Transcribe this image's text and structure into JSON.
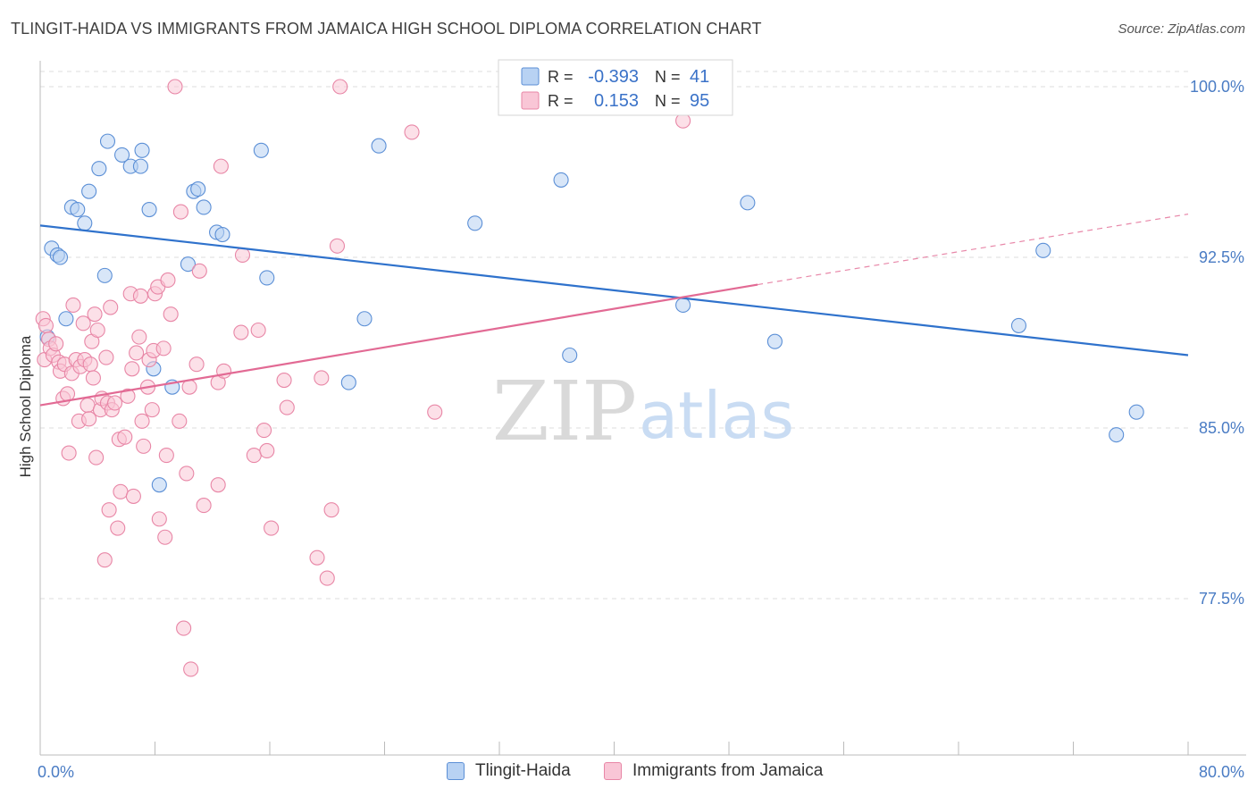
{
  "title": "TLINGIT-HAIDA VS IMMIGRANTS FROM JAMAICA HIGH SCHOOL DIPLOMA CORRELATION CHART",
  "source": "Source: ZipAtlas.com",
  "watermark": {
    "zip": "ZIP",
    "atlas": "atlas"
  },
  "colors": {
    "blue_fill": "#b8d2f3",
    "blue_stroke": "#5b8fd6",
    "blue_line": "#2f72cc",
    "pink_fill": "#f9c6d6",
    "pink_stroke": "#e886a6",
    "pink_line": "#e26a94",
    "tick_label": "#4a7cc4",
    "grid": "#dddddd"
  },
  "stats": {
    "r_label": "R =",
    "n_label": "N =",
    "rows": [
      {
        "r": "-0.393",
        "n": "41",
        "color": "blue"
      },
      {
        "r": "0.153",
        "n": "95",
        "color": "pink"
      }
    ]
  },
  "chart_data": {
    "type": "scatter",
    "title": "TLINGIT-HAIDA VS IMMIGRANTS FROM JAMAICA HIGH SCHOOL DIPLOMA CORRELATION CHART",
    "xlabel": "",
    "ylabel": "High School Diploma",
    "xlim": [
      0,
      80
    ],
    "ylim": [
      71,
      101
    ],
    "x_tick_labels": [
      "0.0%",
      "80.0%"
    ],
    "y_ticks": [
      77.5,
      85.0,
      92.5,
      100.0
    ],
    "y_tick_labels": [
      "77.5%",
      "85.0%",
      "92.5%",
      "100.0%"
    ],
    "grid": true,
    "legend_position": "bottom",
    "series": [
      {
        "name": "Tlingit-Haida",
        "color": "blue",
        "trend": {
          "x": [
            0,
            80
          ],
          "y": [
            93.9,
            88.2
          ]
        },
        "points": [
          [
            0.5,
            89.0
          ],
          [
            0.8,
            92.9
          ],
          [
            1.2,
            92.6
          ],
          [
            1.4,
            92.5
          ],
          [
            1.8,
            89.8
          ],
          [
            2.2,
            94.7
          ],
          [
            2.6,
            94.6
          ],
          [
            3.1,
            94.0
          ],
          [
            3.4,
            95.4
          ],
          [
            4.1,
            96.4
          ],
          [
            4.5,
            91.7
          ],
          [
            4.7,
            97.6
          ],
          [
            5.7,
            97.0
          ],
          [
            6.3,
            96.5
          ],
          [
            7.0,
            96.5
          ],
          [
            7.1,
            97.2
          ],
          [
            7.6,
            94.6
          ],
          [
            7.9,
            87.6
          ],
          [
            8.3,
            82.5
          ],
          [
            9.2,
            86.8
          ],
          [
            10.3,
            92.2
          ],
          [
            10.7,
            95.4
          ],
          [
            11.0,
            95.5
          ],
          [
            11.4,
            94.7
          ],
          [
            12.3,
            93.6
          ],
          [
            12.7,
            93.5
          ],
          [
            15.4,
            97.2
          ],
          [
            15.8,
            91.6
          ],
          [
            21.5,
            87.0
          ],
          [
            22.6,
            89.8
          ],
          [
            23.6,
            97.4
          ],
          [
            30.3,
            94.0
          ],
          [
            36.3,
            95.9
          ],
          [
            36.9,
            88.2
          ],
          [
            44.8,
            90.4
          ],
          [
            49.3,
            94.9
          ],
          [
            51.2,
            88.8
          ],
          [
            68.2,
            89.5
          ],
          [
            69.9,
            92.8
          ],
          [
            75.0,
            84.7
          ],
          [
            76.4,
            85.7
          ]
        ]
      },
      {
        "name": "Immigrants from Jamaica",
        "color": "pink",
        "trend": {
          "x": [
            0,
            50
          ],
          "y": [
            86.0,
            91.3
          ]
        },
        "trend_dashed": {
          "x": [
            50,
            80
          ],
          "y": [
            91.3,
            94.4
          ]
        },
        "points": [
          [
            0.2,
            89.8
          ],
          [
            0.3,
            88.0
          ],
          [
            0.4,
            89.5
          ],
          [
            0.6,
            88.9
          ],
          [
            0.7,
            88.5
          ],
          [
            0.9,
            88.2
          ],
          [
            1.1,
            88.7
          ],
          [
            1.3,
            87.9
          ],
          [
            1.4,
            87.5
          ],
          [
            1.6,
            86.3
          ],
          [
            1.7,
            87.8
          ],
          [
            1.9,
            86.5
          ],
          [
            2.0,
            83.9
          ],
          [
            2.2,
            87.4
          ],
          [
            2.3,
            90.4
          ],
          [
            2.5,
            88.0
          ],
          [
            2.7,
            85.3
          ],
          [
            2.8,
            87.7
          ],
          [
            3.0,
            89.6
          ],
          [
            3.1,
            88.0
          ],
          [
            3.3,
            86.0
          ],
          [
            3.4,
            85.4
          ],
          [
            3.5,
            87.8
          ],
          [
            3.6,
            88.8
          ],
          [
            3.7,
            87.2
          ],
          [
            3.8,
            90.0
          ],
          [
            3.9,
            83.7
          ],
          [
            4.0,
            89.3
          ],
          [
            4.2,
            85.8
          ],
          [
            4.3,
            86.3
          ],
          [
            4.5,
            79.2
          ],
          [
            4.6,
            88.1
          ],
          [
            4.7,
            86.1
          ],
          [
            4.8,
            81.4
          ],
          [
            4.9,
            90.3
          ],
          [
            5.0,
            85.8
          ],
          [
            5.2,
            86.1
          ],
          [
            5.4,
            80.6
          ],
          [
            5.5,
            84.5
          ],
          [
            5.6,
            82.2
          ],
          [
            5.9,
            84.6
          ],
          [
            6.1,
            86.4
          ],
          [
            6.3,
            90.9
          ],
          [
            6.4,
            87.6
          ],
          [
            6.5,
            82.0
          ],
          [
            6.7,
            88.3
          ],
          [
            6.9,
            89.0
          ],
          [
            7.0,
            90.8
          ],
          [
            7.1,
            85.3
          ],
          [
            7.2,
            84.2
          ],
          [
            7.5,
            86.8
          ],
          [
            7.6,
            88.0
          ],
          [
            7.8,
            85.8
          ],
          [
            7.9,
            88.4
          ],
          [
            8.0,
            90.9
          ],
          [
            8.2,
            91.2
          ],
          [
            8.3,
            81.0
          ],
          [
            8.6,
            88.5
          ],
          [
            8.7,
            80.2
          ],
          [
            8.8,
            83.8
          ],
          [
            8.9,
            91.5
          ],
          [
            9.1,
            90.0
          ],
          [
            9.4,
            100.0
          ],
          [
            9.7,
            85.3
          ],
          [
            9.8,
            94.5
          ],
          [
            10.0,
            76.2
          ],
          [
            10.2,
            83.0
          ],
          [
            10.4,
            86.8
          ],
          [
            10.5,
            74.4
          ],
          [
            10.9,
            87.8
          ],
          [
            11.1,
            91.9
          ],
          [
            11.4,
            81.6
          ],
          [
            12.4,
            82.5
          ],
          [
            12.4,
            87.0
          ],
          [
            12.6,
            96.5
          ],
          [
            12.8,
            87.5
          ],
          [
            14.0,
            89.2
          ],
          [
            14.1,
            92.6
          ],
          [
            14.9,
            83.8
          ],
          [
            15.2,
            89.3
          ],
          [
            15.6,
            84.9
          ],
          [
            15.8,
            84.0
          ],
          [
            16.1,
            80.6
          ],
          [
            17.0,
            87.1
          ],
          [
            17.2,
            85.9
          ],
          [
            19.3,
            79.3
          ],
          [
            19.6,
            87.2
          ],
          [
            20.0,
            78.4
          ],
          [
            20.3,
            81.4
          ],
          [
            20.7,
            93.0
          ],
          [
            20.9,
            100.0
          ],
          [
            25.9,
            98.0
          ],
          [
            27.5,
            85.7
          ],
          [
            43.1,
            100.0
          ],
          [
            44.8,
            98.5
          ]
        ]
      }
    ]
  }
}
